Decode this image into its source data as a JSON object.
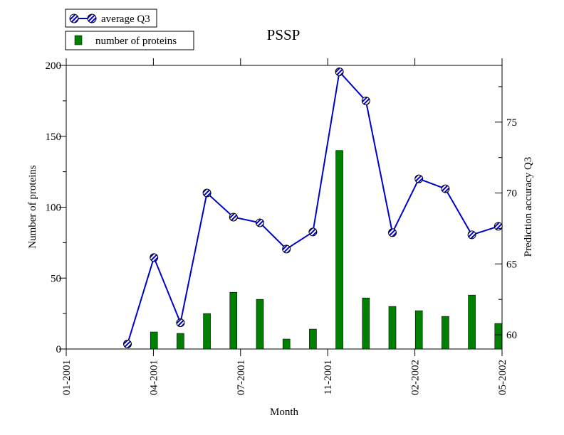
{
  "chart_data": {
    "type": "bar+line",
    "title": "PSSP",
    "xlabel": "Month",
    "ylabel_left": "Number of proteins",
    "ylabel_right": "Prediction accuracy Q3",
    "x_tick_labels": [
      "01-2001",
      "04-2001",
      "07-2001",
      "11-2001",
      "02-2002",
      "05-2002"
    ],
    "ylim_left": [
      0,
      200
    ],
    "yticks_left": [
      "0",
      "50",
      "100",
      "150",
      "200"
    ],
    "ylim_right": [
      59,
      79
    ],
    "yticks_right": [
      "60",
      "65",
      "70",
      "75"
    ],
    "grid": false,
    "legend_placement": "top-left",
    "x": [
      0,
      1,
      2,
      3,
      4,
      5,
      6,
      7,
      8,
      9,
      10,
      11,
      12,
      13,
      14
    ],
    "series": [
      {
        "name": "average Q3",
        "kind": "line",
        "axis": "right",
        "color": "#0000cc",
        "values": [
          59.35,
          65.45,
          60.85,
          70.0,
          68.3,
          67.9,
          66.05,
          67.25,
          78.55,
          76.5,
          67.2,
          71.0,
          70.3,
          67.05,
          67.65
        ]
      },
      {
        "name": "number of proteins",
        "kind": "bar",
        "axis": "left",
        "color": "#008000",
        "values": [
          0,
          12,
          11,
          25,
          40,
          35,
          7,
          14,
          140,
          36,
          30,
          27,
          23,
          38,
          18
        ]
      }
    ]
  }
}
